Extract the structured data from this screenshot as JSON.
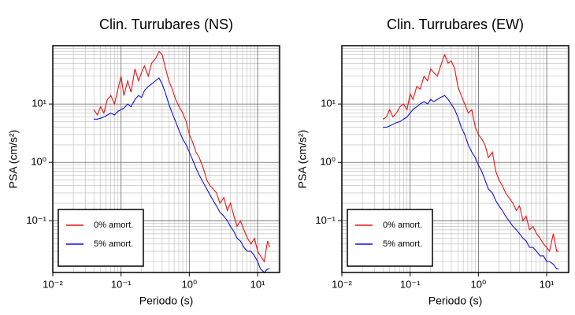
{
  "chart_data": [
    {
      "type": "line",
      "title": "Clin. Turrubares (NS)",
      "xlabel": "Periodo (s)",
      "ylabel": "PSA (cm/s²)",
      "log_x": true,
      "log_y": true,
      "grid": true,
      "legend": "lower left",
      "xlim": [
        0.01,
        21
      ],
      "ylim": [
        0.013,
        100
      ],
      "xticks": [
        {
          "value": 0.01,
          "label": "10⁻²"
        },
        {
          "value": 0.1,
          "label": "10⁻¹"
        },
        {
          "value": 1,
          "label": "10⁰"
        },
        {
          "value": 10,
          "label": "10¹"
        }
      ],
      "yticks": [
        {
          "value": 0.1,
          "label": "10⁻¹"
        },
        {
          "value": 1,
          "label": "10⁰"
        },
        {
          "value": 10,
          "label": "10¹"
        }
      ],
      "xminor": [
        0.02,
        0.03,
        0.04,
        0.05,
        0.06,
        0.07,
        0.08,
        0.09,
        0.2,
        0.3,
        0.4,
        0.5,
        0.6,
        0.7,
        0.8,
        0.9,
        2,
        3,
        4,
        5,
        6,
        7,
        8,
        9,
        20
      ],
      "yminor": [
        0.02,
        0.03,
        0.04,
        0.05,
        0.06,
        0.07,
        0.08,
        0.09,
        0.2,
        0.3,
        0.4,
        0.5,
        0.6,
        0.7,
        0.8,
        0.9,
        2,
        3,
        4,
        5,
        6,
        7,
        8,
        9,
        20,
        30,
        40,
        50,
        60,
        70,
        80,
        90
      ],
      "x": [
        0.04,
        0.045,
        0.05,
        0.056,
        0.063,
        0.071,
        0.08,
        0.09,
        0.1,
        0.11,
        0.125,
        0.14,
        0.16,
        0.18,
        0.2,
        0.22,
        0.25,
        0.28,
        0.32,
        0.36,
        0.4,
        0.45,
        0.5,
        0.56,
        0.63,
        0.71,
        0.8,
        0.9,
        1.0,
        1.12,
        1.25,
        1.4,
        1.6,
        1.8,
        2.0,
        2.24,
        2.5,
        2.8,
        3.2,
        3.6,
        4.0,
        4.5,
        5.0,
        5.6,
        6.3,
        7.1,
        8.0,
        9.0,
        10,
        11,
        12.5,
        14,
        15
      ],
      "series": [
        {
          "name": "0% amort.",
          "color": "#ee1111",
          "values": [
            8,
            6.5,
            9,
            7,
            12,
            14,
            10,
            18,
            30,
            14,
            25,
            16,
            40,
            25,
            35,
            45,
            30,
            50,
            60,
            80,
            70,
            40,
            25,
            18,
            12,
            9,
            7,
            5,
            3,
            2.2,
            1.5,
            1.2,
            0.8,
            0.5,
            0.4,
            0.35,
            0.3,
            0.2,
            0.25,
            0.15,
            0.2,
            0.12,
            0.08,
            0.1,
            0.07,
            0.05,
            0.04,
            0.05,
            0.03,
            0.025,
            0.02,
            0.045,
            0.035
          ]
        },
        {
          "name": "5% amort.",
          "color": "#1111dd",
          "values": [
            5.5,
            5.5,
            5.7,
            6,
            6.5,
            7,
            6.5,
            7.5,
            8,
            8.5,
            10,
            9,
            12,
            14,
            13,
            17,
            20,
            22,
            25,
            28,
            22,
            15,
            10,
            7,
            5,
            3.5,
            2.5,
            2,
            1.5,
            1.1,
            0.8,
            0.6,
            0.45,
            0.35,
            0.28,
            0.22,
            0.18,
            0.14,
            0.12,
            0.1,
            0.08,
            0.065,
            0.05,
            0.045,
            0.035,
            0.03,
            0.03,
            0.025,
            0.02,
            0.015,
            0.013,
            0.015,
            0.015
          ]
        }
      ]
    },
    {
      "type": "line",
      "title": "Clin. Turrubares (EW)",
      "xlabel": "Periodo (s)",
      "ylabel": "PSA (cm/s²)",
      "log_x": true,
      "log_y": true,
      "grid": true,
      "legend": "lower left",
      "xlim": [
        0.01,
        21
      ],
      "ylim": [
        0.013,
        100
      ],
      "xticks": [
        {
          "value": 0.01,
          "label": "10⁻²"
        },
        {
          "value": 0.1,
          "label": "10⁻¹"
        },
        {
          "value": 1,
          "label": "10⁰"
        },
        {
          "value": 10,
          "label": "10¹"
        }
      ],
      "yticks": [
        {
          "value": 0.1,
          "label": "10⁻¹"
        },
        {
          "value": 1,
          "label": "10⁰"
        },
        {
          "value": 10,
          "label": "10¹"
        }
      ],
      "xminor": [
        0.02,
        0.03,
        0.04,
        0.05,
        0.06,
        0.07,
        0.08,
        0.09,
        0.2,
        0.3,
        0.4,
        0.5,
        0.6,
        0.7,
        0.8,
        0.9,
        2,
        3,
        4,
        5,
        6,
        7,
        8,
        9,
        20
      ],
      "yminor": [
        0.02,
        0.03,
        0.04,
        0.05,
        0.06,
        0.07,
        0.08,
        0.09,
        0.2,
        0.3,
        0.4,
        0.5,
        0.6,
        0.7,
        0.8,
        0.9,
        2,
        3,
        4,
        5,
        6,
        7,
        8,
        9,
        20,
        30,
        40,
        50,
        60,
        70,
        80,
        90
      ],
      "x": [
        0.04,
        0.045,
        0.05,
        0.056,
        0.063,
        0.071,
        0.08,
        0.09,
        0.1,
        0.11,
        0.125,
        0.14,
        0.16,
        0.18,
        0.2,
        0.22,
        0.25,
        0.28,
        0.32,
        0.36,
        0.4,
        0.45,
        0.5,
        0.56,
        0.63,
        0.71,
        0.8,
        0.9,
        1.0,
        1.12,
        1.25,
        1.4,
        1.6,
        1.8,
        2.0,
        2.24,
        2.5,
        2.8,
        3.2,
        3.6,
        4.0,
        4.5,
        5.0,
        5.6,
        6.3,
        7.1,
        8.0,
        9.0,
        10,
        11,
        12.5,
        14,
        15
      ],
      "series": [
        {
          "name": "0% amort.",
          "color": "#ee1111",
          "values": [
            5.5,
            6,
            8,
            6,
            7,
            9,
            10,
            8,
            15,
            12,
            20,
            18,
            30,
            25,
            40,
            35,
            30,
            45,
            70,
            50,
            55,
            40,
            20,
            14,
            10,
            7,
            8,
            4,
            3,
            2.5,
            2,
            1.2,
            1.5,
            0.7,
            0.5,
            0.4,
            0.3,
            0.25,
            0.2,
            0.15,
            0.18,
            0.1,
            0.12,
            0.07,
            0.08,
            0.06,
            0.05,
            0.04,
            0.035,
            0.03,
            0.06,
            0.03,
            0.03
          ]
        },
        {
          "name": "5% amort.",
          "color": "#1111dd",
          "values": [
            4,
            4,
            4.2,
            4.5,
            4.8,
            5,
            5.5,
            6,
            7,
            8,
            9,
            10,
            11,
            10,
            12,
            11,
            12,
            13,
            14,
            12,
            10,
            8,
            6,
            4,
            3,
            2,
            1.5,
            1.2,
            0.9,
            0.7,
            0.5,
            0.35,
            0.3,
            0.22,
            0.18,
            0.15,
            0.12,
            0.1,
            0.08,
            0.07,
            0.06,
            0.05,
            0.045,
            0.035,
            0.035,
            0.03,
            0.025,
            0.025,
            0.02,
            0.02,
            0.018,
            0.015,
            0.015
          ]
        }
      ]
    }
  ]
}
